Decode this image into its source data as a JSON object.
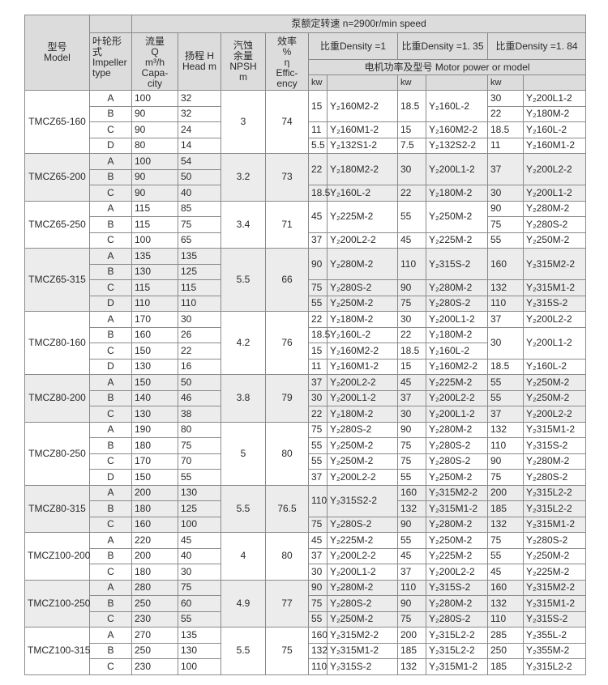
{
  "header": {
    "model": "型号\nModel",
    "impeller": "叶轮形式\nImpeller type",
    "capacity": "流量\nQ\nm³/h\nCapa-city",
    "head": "扬程 H\nHead m",
    "npsh": "汽蚀\n余量\nNPSH\nm",
    "efficiency": "效率\n%\nη\nEffic-ency",
    "speed": "泵额定转速  n=2900r/min speed",
    "densities": [
      "比重Density  =1",
      "比重Density  =1. 35",
      "比重Density  =1. 84"
    ],
    "motor": "电机功率及型号  Motor power or model",
    "kw": "kw"
  },
  "groups": [
    {
      "model": "TMCZ65-160",
      "npsh": "3",
      "eff": "74",
      "pumps": [
        [
          "A",
          "100",
          "32"
        ],
        [
          "B",
          "90",
          "32"
        ],
        [
          "C",
          "90",
          "24"
        ],
        [
          "D",
          "80",
          "14"
        ]
      ],
      "motors": [
        [
          {
            "kw": "15",
            "model": "Y₂160M2-2",
            "rows": 2
          },
          {
            "kw": "18.5",
            "model": "Y₂160L-2",
            "rows": 2
          },
          {
            "kw": "30",
            "model": "Y₂200L1-2"
          }
        ],
        [
          null,
          null,
          {
            "kw": "22",
            "model": "Y₂180M-2"
          }
        ],
        [
          {
            "kw": "11",
            "model": "Y₂160M1-2"
          },
          {
            "kw": "15",
            "model": "Y₂160M2-2"
          },
          {
            "kw": "18.5",
            "model": "Y₂160L-2"
          }
        ],
        [
          {
            "kw": "5.5",
            "model": "Y₂132S1-2"
          },
          {
            "kw": "7.5",
            "model": "Y₂132S2-2"
          },
          {
            "kw": "11",
            "model": "Y₂160M1-2"
          }
        ]
      ]
    },
    {
      "model": "TMCZ65-200",
      "npsh": "3.2",
      "eff": "73",
      "pumps": [
        [
          "A",
          "100",
          "54"
        ],
        [
          "B",
          "90",
          "50"
        ],
        [
          "C",
          "90",
          "40"
        ]
      ],
      "motors": [
        [
          {
            "kw": "22",
            "model": "Y₂180M2-2",
            "rows": 2
          },
          {
            "kw": "30",
            "model": "Y₂200L1-2",
            "rows": 2
          },
          {
            "kw": "37",
            "model": "Y₂200L2-2",
            "rows": 2
          }
        ],
        [
          null,
          null,
          null
        ],
        [
          {
            "kw": "18.5",
            "model": "Y₂160L-2"
          },
          {
            "kw": "22",
            "model": "Y₂180M-2"
          },
          {
            "kw": "30",
            "model": "Y₂200L1-2"
          }
        ]
      ]
    },
    {
      "model": "TMCZ65-250",
      "npsh": "3.4",
      "eff": "71",
      "pumps": [
        [
          "A",
          "115",
          "85"
        ],
        [
          "B",
          "115",
          "75"
        ],
        [
          "C",
          "100",
          "65"
        ]
      ],
      "motors": [
        [
          {
            "kw": "45",
            "model": "Y₂225M-2",
            "rows": 2
          },
          {
            "kw": "55",
            "model": "Y₂250M-2",
            "rows": 2
          },
          {
            "kw": "90",
            "model": "Y₂280M-2"
          }
        ],
        [
          null,
          null,
          {
            "kw": "75",
            "model": "Y₂280S-2"
          }
        ],
        [
          {
            "kw": "37",
            "model": "Y₂200L2-2"
          },
          {
            "kw": "45",
            "model": "Y₂225M-2"
          },
          {
            "kw": "55",
            "model": "Y₂250M-2"
          }
        ]
      ]
    },
    {
      "model": "TMCZ65-315",
      "npsh": "5.5",
      "eff": "66",
      "pumps": [
        [
          "A",
          "135",
          "135"
        ],
        [
          "B",
          "130",
          "125"
        ],
        [
          "C",
          "115",
          "115"
        ],
        [
          "D",
          "110",
          "110"
        ]
      ],
      "motors": [
        [
          {
            "kw": "90",
            "model": "Y₂280M-2",
            "rows": 2
          },
          {
            "kw": "110",
            "model": "Y₂315S-2",
            "rows": 2
          },
          {
            "kw": "160",
            "model": "Y₂315M2-2",
            "rows": 2
          }
        ],
        [
          null,
          null,
          null
        ],
        [
          {
            "kw": "75",
            "model": "Y₂280S-2"
          },
          {
            "kw": "90",
            "model": "Y₂280M-2"
          },
          {
            "kw": "132",
            "model": "Y₂315M1-2"
          }
        ],
        [
          {
            "kw": "55",
            "model": "Y₂250M-2"
          },
          {
            "kw": "75",
            "model": "Y₂280S-2"
          },
          {
            "kw": "110",
            "model": "Y₂315S-2"
          }
        ]
      ]
    },
    {
      "model": "TMCZ80-160",
      "npsh": "4.2",
      "eff": "76",
      "pumps": [
        [
          "A",
          "170",
          "30"
        ],
        [
          "B",
          "160",
          "26"
        ],
        [
          "C",
          "150",
          "22"
        ],
        [
          "D",
          "130",
          "16"
        ]
      ],
      "motors": [
        [
          {
            "kw": "22",
            "model": "Y₂180M-2"
          },
          {
            "kw": "30",
            "model": "Y₂200L1-2"
          },
          {
            "kw": "37",
            "model": "Y₂200L2-2"
          }
        ],
        [
          {
            "kw": "18.5",
            "model": "Y₂160L-2"
          },
          {
            "kw": "22",
            "model": "Y₂180M-2"
          },
          {
            "kw": "30",
            "model": "Y₂200L1-2",
            "rows": 2
          }
        ],
        [
          {
            "kw": "15",
            "model": "Y₂160M2-2"
          },
          {
            "kw": "18.5",
            "model": "Y₂160L-2"
          },
          null
        ],
        [
          {
            "kw": "11",
            "model": "Y₂160M1-2"
          },
          {
            "kw": "15",
            "model": "Y₂160M2-2"
          },
          {
            "kw": "18.5",
            "model": "Y₂160L-2"
          }
        ]
      ]
    },
    {
      "model": "TMCZ80-200",
      "npsh": "3.8",
      "eff": "79",
      "pumps": [
        [
          "A",
          "150",
          "50"
        ],
        [
          "B",
          "140",
          "46"
        ],
        [
          "C",
          "130",
          "38"
        ]
      ],
      "motors": [
        [
          {
            "kw": "37",
            "model": "Y₂200L2-2"
          },
          {
            "kw": "45",
            "model": "Y₂225M-2"
          },
          {
            "kw": "55",
            "model": "Y₂250M-2"
          }
        ],
        [
          {
            "kw": "30",
            "model": "Y₂200L1-2"
          },
          {
            "kw": "37",
            "model": "Y₂200L2-2"
          },
          {
            "kw": "55",
            "model": "Y₂250M-2"
          }
        ],
        [
          {
            "kw": "22",
            "model": "Y₂180M-2"
          },
          {
            "kw": "30",
            "model": "Y₂200L1-2"
          },
          {
            "kw": "37",
            "model": "Y₂200L2-2"
          }
        ]
      ]
    },
    {
      "model": "TMCZ80-250",
      "npsh": "5",
      "eff": "80",
      "pumps": [
        [
          "A",
          "190",
          "80"
        ],
        [
          "B",
          "180",
          "75"
        ],
        [
          "C",
          "170",
          "70"
        ],
        [
          "D",
          "150",
          "55"
        ]
      ],
      "motors": [
        [
          {
            "kw": "75",
            "model": "Y₂280S-2"
          },
          {
            "kw": "90",
            "model": "Y₂280M-2"
          },
          {
            "kw": "132",
            "model": "Y₂315M1-2"
          }
        ],
        [
          {
            "kw": "55",
            "model": "Y₂250M-2"
          },
          {
            "kw": "75",
            "model": "Y₂280S-2"
          },
          {
            "kw": "110",
            "model": "Y₂315S-2"
          }
        ],
        [
          {
            "kw": "55",
            "model": "Y₂250M-2"
          },
          {
            "kw": "75",
            "model": "Y₂280S-2"
          },
          {
            "kw": "90",
            "model": "Y₂280M-2"
          }
        ],
        [
          {
            "kw": "37",
            "model": "Y₂200L2-2"
          },
          {
            "kw": "55",
            "model": "Y₂250M-2"
          },
          {
            "kw": "75",
            "model": "Y₂280S-2"
          }
        ]
      ]
    },
    {
      "model": "TMCZ80-315",
      "npsh": "5.5",
      "eff": "76.5",
      "pumps": [
        [
          "A",
          "200",
          "130"
        ],
        [
          "B",
          "180",
          "125"
        ],
        [
          "C",
          "160",
          "100"
        ]
      ],
      "motors": [
        [
          {
            "kw": "110",
            "model": "Y₂315S2-2",
            "rows": 2
          },
          {
            "kw": "160",
            "model": "Y₂315M2-2"
          },
          {
            "kw": "200",
            "model": "Y₂315L2-2"
          }
        ],
        [
          null,
          {
            "kw": "132",
            "model": "Y₂315M1-2"
          },
          {
            "kw": "185",
            "model": "Y₂315L2-2"
          }
        ],
        [
          {
            "kw": "75",
            "model": "Y₂280S-2"
          },
          {
            "kw": "90",
            "model": "Y₂280M-2"
          },
          {
            "kw": "132",
            "model": "Y₂315M1-2"
          }
        ]
      ]
    },
    {
      "model": "TMCZ100-200",
      "npsh": "4",
      "eff": "80",
      "pumps": [
        [
          "A",
          "220",
          "45"
        ],
        [
          "B",
          "200",
          "40"
        ],
        [
          "C",
          "180",
          "30"
        ]
      ],
      "motors": [
        [
          {
            "kw": "45",
            "model": "Y₂225M-2"
          },
          {
            "kw": "55",
            "model": "Y₂250M-2"
          },
          {
            "kw": "75",
            "model": "Y₂280S-2"
          }
        ],
        [
          {
            "kw": "37",
            "model": "Y₂200L2-2"
          },
          {
            "kw": "45",
            "model": "Y₂225M-2"
          },
          {
            "kw": "55",
            "model": "Y₂250M-2"
          }
        ],
        [
          {
            "kw": "30",
            "model": "Y₂200L1-2"
          },
          {
            "kw": "37",
            "model": "Y₂200L2-2"
          },
          {
            "kw": "45",
            "model": "Y₂225M-2"
          }
        ]
      ]
    },
    {
      "model": "TMCZ100-250",
      "npsh": "4.9",
      "eff": "77",
      "pumps": [
        [
          "A",
          "280",
          "75"
        ],
        [
          "B",
          "250",
          "60"
        ],
        [
          "C",
          "230",
          "55"
        ]
      ],
      "motors": [
        [
          {
            "kw": "90",
            "model": "Y₂280M-2"
          },
          {
            "kw": "110",
            "model": "Y₂315S-2"
          },
          {
            "kw": "160",
            "model": "Y₂315M2-2"
          }
        ],
        [
          {
            "kw": "75",
            "model": "Y₂280S-2"
          },
          {
            "kw": "90",
            "model": "Y₂280M-2"
          },
          {
            "kw": "132",
            "model": "Y₂315M1-2"
          }
        ],
        [
          {
            "kw": "55",
            "model": "Y₂250M-2"
          },
          {
            "kw": "75",
            "model": "Y₂280S-2"
          },
          {
            "kw": "110",
            "model": "Y₂315S-2"
          }
        ]
      ]
    },
    {
      "model": "TMCZ100-315",
      "npsh": "5.5",
      "eff": "75",
      "pumps": [
        [
          "A",
          "270",
          "135"
        ],
        [
          "B",
          "250",
          "130"
        ],
        [
          "C",
          "230",
          "100"
        ]
      ],
      "motors": [
        [
          {
            "kw": "160",
            "model": "Y₂315M2-2"
          },
          {
            "kw": "200",
            "model": "Y₂315L2-2"
          },
          {
            "kw": "285",
            "model": "Y₂355L-2"
          }
        ],
        [
          {
            "kw": "132",
            "model": "Y₂315M1-2"
          },
          {
            "kw": "185",
            "model": "Y₂315L2-2"
          },
          {
            "kw": "250",
            "model": "Y₂355M-2"
          }
        ],
        [
          {
            "kw": "110",
            "model": "Y₂315S-2"
          },
          {
            "kw": "132",
            "model": "Y₂315M1-2"
          },
          {
            "kw": "185",
            "model": "Y₂315L2-2"
          }
        ]
      ]
    }
  ]
}
